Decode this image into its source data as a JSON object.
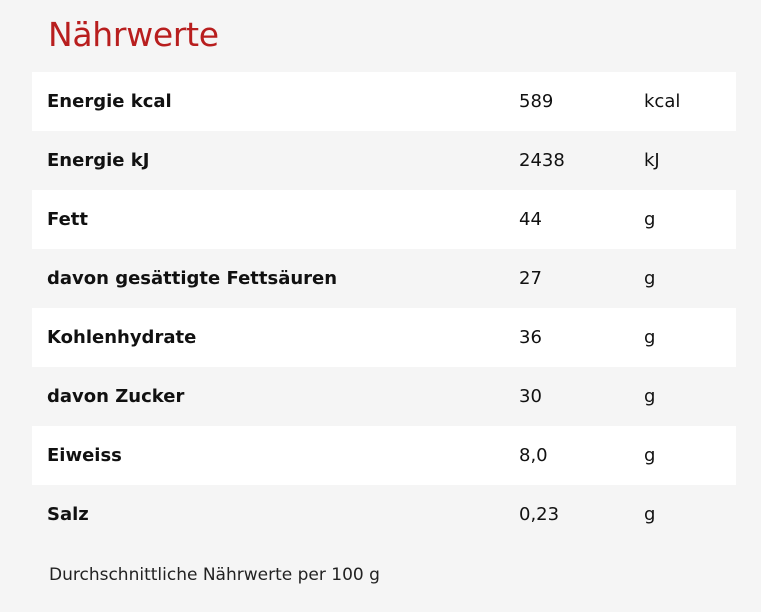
{
  "title": "Nährwerte",
  "rows": [
    {
      "name": "Energie kcal",
      "value": "589",
      "unit": "kcal"
    },
    {
      "name": "Energie kJ",
      "value": "2438",
      "unit": "kJ"
    },
    {
      "name": "Fett",
      "value": "44",
      "unit": "g"
    },
    {
      "name": "davon gesättigte Fettsäuren",
      "value": "27",
      "unit": "g"
    },
    {
      "name": "Kohlenhydrate",
      "value": "36",
      "unit": "g"
    },
    {
      "name": "davon Zucker",
      "value": "30",
      "unit": "g"
    },
    {
      "name": "Eiweiss",
      "value": "8,0",
      "unit": "g"
    },
    {
      "name": "Salz",
      "value": "0,23",
      "unit": "g"
    }
  ],
  "footnote": "Durchschnittliche Nährwerte per 100 g",
  "colors": {
    "title": "#b81e1e",
    "row_odd": "#ffffff",
    "row_even": "#f5f5f5",
    "page_background": "#f5f5f5"
  }
}
